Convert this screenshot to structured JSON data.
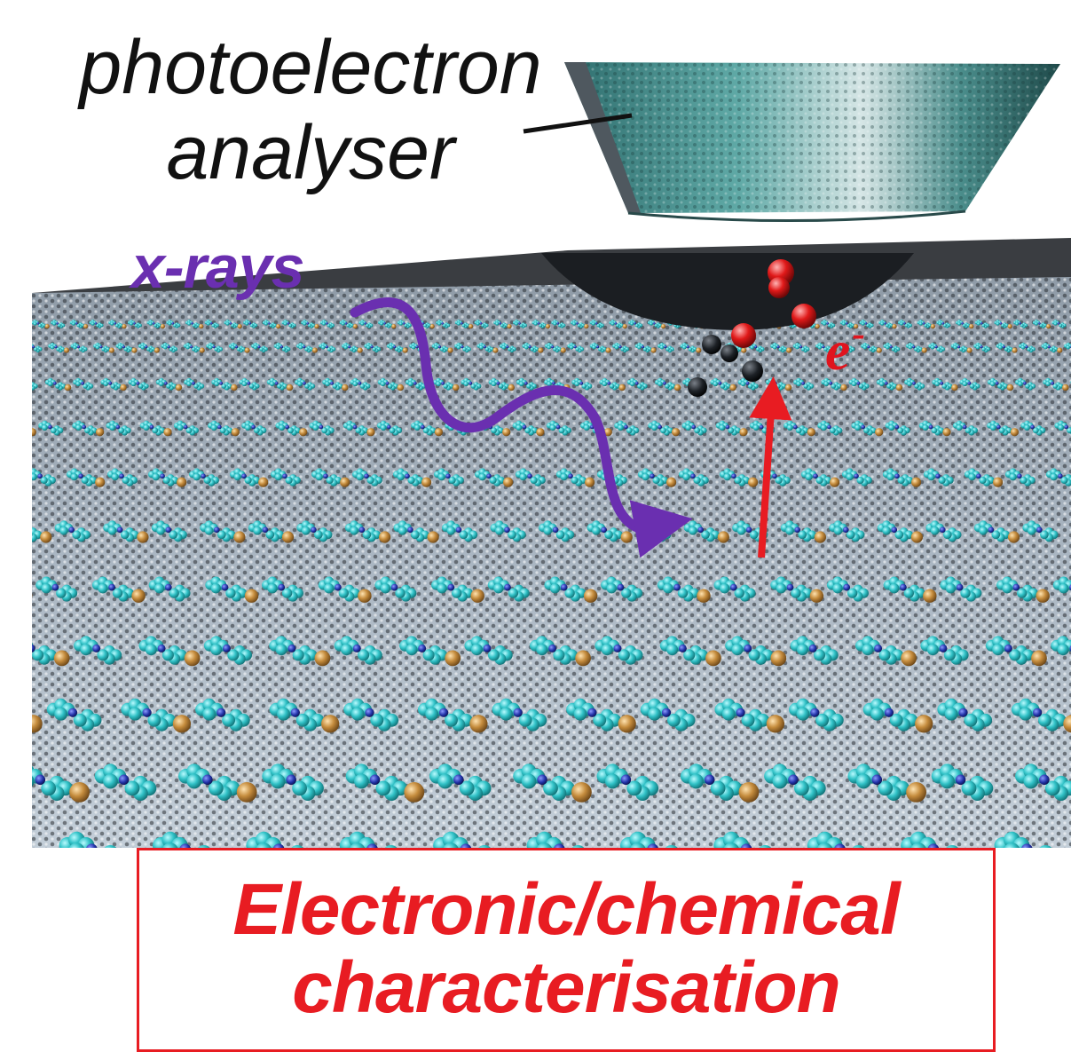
{
  "labels": {
    "analyser_line1": "photoelectron",
    "analyser_line2": "analyser",
    "xrays": "x-rays",
    "electron": "e",
    "electron_charge": "-"
  },
  "caption": {
    "line1": "Electronic/chemical",
    "line2": "characterisation"
  },
  "colors": {
    "caption_red": "#e81c22",
    "xray_purple": "#6a2fb0",
    "electron_red": "#e0141e",
    "molecule_cyan": "#29b6b8",
    "metal_gold": "#c08a3a",
    "nitrogen_blue": "#1f2f9a"
  }
}
